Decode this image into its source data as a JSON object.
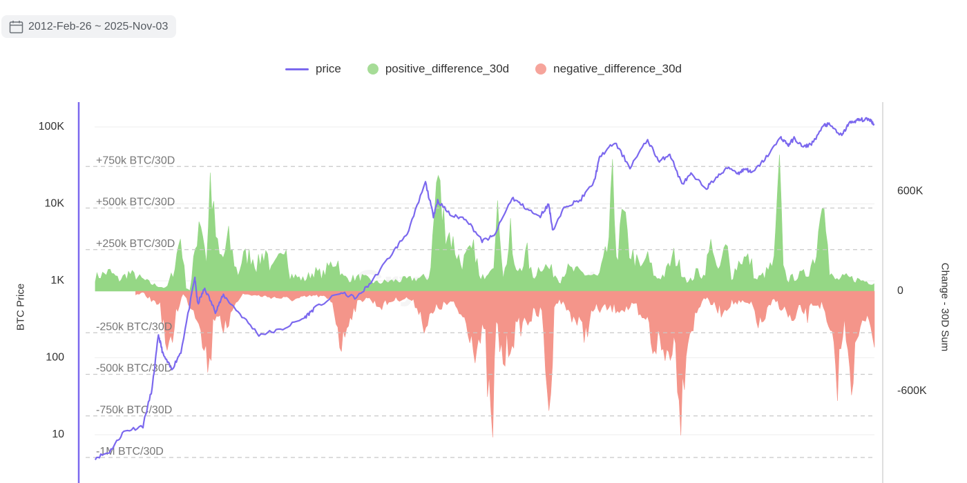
{
  "date_range": {
    "label": "2012-Feb-26 ~ 2025-Nov-03",
    "icon": "calendar-icon"
  },
  "legend": [
    {
      "key": "price",
      "label": "price",
      "color": "#7b68ee",
      "shape": "line"
    },
    {
      "key": "pos",
      "label": "positive_difference_30d",
      "color": "#95d785",
      "shape": "dot"
    },
    {
      "key": "neg",
      "label": "negative_difference_30d",
      "color": "#f4958a",
      "shape": "dot"
    }
  ],
  "axes": {
    "left_title": "BTC Price",
    "right_title": "Change - 30D Sum",
    "left_ticks": [
      "100K",
      "10K",
      "1K",
      "100",
      "10"
    ],
    "right_ticks": [
      "600K",
      "0",
      "-600K"
    ]
  },
  "colors": {
    "price_line": "#7b68ee",
    "positive_fill": "#95d785",
    "negative_fill": "#f4958a",
    "reference_line": "#c8c8c8",
    "grid": "#eeeeee"
  },
  "chart_data": {
    "type": "area",
    "x_range": [
      "2012-02-26",
      "2025-11-03"
    ],
    "y_left": {
      "label": "BTC Price",
      "scale": "log",
      "range": [
        5,
        150000
      ],
      "ticks": [
        10,
        100,
        1000,
        10000,
        100000
      ]
    },
    "y_right": {
      "label": "Change - 30D Sum",
      "range": [
        -1120000,
        1120000
      ],
      "ticks": [
        -600000,
        0,
        600000
      ]
    },
    "reference_lines": [
      {
        "value": 750000,
        "label": "+750k BTC/30D"
      },
      {
        "value": 500000,
        "label": "+500k BTC/30D"
      },
      {
        "value": 250000,
        "label": "+250k BTC/30D"
      },
      {
        "value": -250000,
        "label": "-250k BTC/30D"
      },
      {
        "value": -500000,
        "label": "-500k BTC/30D"
      },
      {
        "value": -750000,
        "label": "-750k BTC/30D"
      },
      {
        "value": -1000000,
        "label": "-1M BTC/30D"
      }
    ],
    "series": [
      {
        "name": "price",
        "points": [
          [
            "2012-03-01",
            5
          ],
          [
            "2012-06-01",
            6
          ],
          [
            "2012-09-01",
            11
          ],
          [
            "2013-01-01",
            13
          ],
          [
            "2013-03-01",
            40
          ],
          [
            "2013-04-10",
            200
          ],
          [
            "2013-05-10",
            110
          ],
          [
            "2013-07-05",
            70
          ],
          [
            "2013-09-01",
            120
          ],
          [
            "2013-11-30",
            1100
          ],
          [
            "2013-12-18",
            500
          ],
          [
            "2014-02-01",
            800
          ],
          [
            "2014-04-10",
            400
          ],
          [
            "2014-06-01",
            650
          ],
          [
            "2014-09-01",
            400
          ],
          [
            "2015-01-14",
            200
          ],
          [
            "2015-06-01",
            230
          ],
          [
            "2015-11-01",
            330
          ],
          [
            "2016-01-01",
            430
          ],
          [
            "2016-06-15",
            700
          ],
          [
            "2016-10-01",
            600
          ],
          [
            "2017-01-01",
            950
          ],
          [
            "2017-06-01",
            2500
          ],
          [
            "2017-09-01",
            4500
          ],
          [
            "2017-12-17",
            19000
          ],
          [
            "2018-02-06",
            7000
          ],
          [
            "2018-03-05",
            11000
          ],
          [
            "2018-06-01",
            7000
          ],
          [
            "2018-09-01",
            6500
          ],
          [
            "2018-12-15",
            3300
          ],
          [
            "2019-03-01",
            3800
          ],
          [
            "2019-06-26",
            12000
          ],
          [
            "2019-09-01",
            9500
          ],
          [
            "2019-12-17",
            6700
          ],
          [
            "2020-02-15",
            10000
          ],
          [
            "2020-03-13",
            4500
          ],
          [
            "2020-06-01",
            9500
          ],
          [
            "2020-09-01",
            11000
          ],
          [
            "2020-12-01",
            19000
          ],
          [
            "2021-01-08",
            41000
          ],
          [
            "2021-04-14",
            63000
          ],
          [
            "2021-07-20",
            30000
          ],
          [
            "2021-11-10",
            68000
          ],
          [
            "2022-01-24",
            35000
          ],
          [
            "2022-04-01",
            45000
          ],
          [
            "2022-06-18",
            18000
          ],
          [
            "2022-08-15",
            24000
          ],
          [
            "2022-11-21",
            16000
          ],
          [
            "2023-01-15",
            21000
          ],
          [
            "2023-04-14",
            30000
          ],
          [
            "2023-06-15",
            25000
          ],
          [
            "2023-08-01",
            29000
          ],
          [
            "2023-09-11",
            25000
          ],
          [
            "2023-12-01",
            38000
          ],
          [
            "2024-03-14",
            73000
          ],
          [
            "2024-05-01",
            58000
          ],
          [
            "2024-06-06",
            71000
          ],
          [
            "2024-08-05",
            54000
          ],
          [
            "2024-10-01",
            62000
          ],
          [
            "2024-12-17",
            106000
          ],
          [
            "2025-01-20",
            107000
          ],
          [
            "2025-04-08",
            76000
          ],
          [
            "2025-05-22",
            111000
          ],
          [
            "2025-07-14",
            122000
          ],
          [
            "2025-08-14",
            124000
          ],
          [
            "2025-10-06",
            125000
          ],
          [
            "2025-11-03",
            107000
          ]
        ]
      },
      {
        "name": "positive_difference_30d",
        "points": [
          [
            "2012-03-01",
            100000
          ],
          [
            "2012-06-01",
            140000
          ],
          [
            "2012-08-01",
            80000
          ],
          [
            "2012-10-01",
            130000
          ],
          [
            "2012-12-01",
            100000
          ],
          [
            "2013-03-01",
            50000
          ],
          [
            "2013-06-01",
            20000
          ],
          [
            "2013-07-20",
            160000
          ],
          [
            "2013-09-01",
            420000
          ],
          [
            "2013-10-01",
            30000
          ],
          [
            "2013-11-01",
            0
          ],
          [
            "2014-01-01",
            600000
          ],
          [
            "2014-02-15",
            200000
          ],
          [
            "2014-03-10",
            860000
          ],
          [
            "2014-04-01",
            500000
          ],
          [
            "2014-05-01",
            250000
          ],
          [
            "2014-06-01",
            240000
          ],
          [
            "2014-07-01",
            380000
          ],
          [
            "2014-09-01",
            120000
          ],
          [
            "2014-10-01",
            240000
          ],
          [
            "2014-12-01",
            260000
          ],
          [
            "2015-01-01",
            180000
          ],
          [
            "2015-03-01",
            310000
          ],
          [
            "2015-04-01",
            140000
          ],
          [
            "2015-06-01",
            230000
          ],
          [
            "2015-07-01",
            430000
          ],
          [
            "2015-08-01",
            120000
          ],
          [
            "2015-11-01",
            80000
          ],
          [
            "2016-01-01",
            140000
          ],
          [
            "2016-03-01",
            120000
          ],
          [
            "2016-05-01",
            210000
          ],
          [
            "2016-06-01",
            230000
          ],
          [
            "2016-07-01",
            100000
          ],
          [
            "2016-09-01",
            90000
          ],
          [
            "2016-11-01",
            100000
          ],
          [
            "2017-02-01",
            60000
          ],
          [
            "2018-01-10",
            100000
          ],
          [
            "2018-02-01",
            370000
          ],
          [
            "2018-03-05",
            890000
          ],
          [
            "2018-04-01",
            550000
          ],
          [
            "2018-06-01",
            380000
          ],
          [
            "2018-08-01",
            200000
          ],
          [
            "2018-11-01",
            300000
          ],
          [
            "2018-12-01",
            60000
          ],
          [
            "2019-01-15",
            150000
          ],
          [
            "2019-03-01",
            250000
          ],
          [
            "2019-04-01",
            600000
          ],
          [
            "2019-05-01",
            80000
          ],
          [
            "2019-06-15",
            400000
          ],
          [
            "2019-07-15",
            120000
          ],
          [
            "2019-10-01",
            270000
          ],
          [
            "2019-11-01",
            90000
          ],
          [
            "2020-01-01",
            200000
          ],
          [
            "2020-03-01",
            150000
          ],
          [
            "2020-05-01",
            80000
          ],
          [
            "2020-06-01",
            160000
          ],
          [
            "2021-01-01",
            100000
          ],
          [
            "2021-03-01",
            310000
          ],
          [
            "2021-04-01",
            760000
          ],
          [
            "2021-05-01",
            200000
          ],
          [
            "2021-06-01",
            560000
          ],
          [
            "2021-07-15",
            300000
          ],
          [
            "2021-09-01",
            210000
          ],
          [
            "2021-10-01",
            150000
          ],
          [
            "2021-11-01",
            260000
          ],
          [
            "2022-01-01",
            90000
          ],
          [
            "2022-03-01",
            120000
          ],
          [
            "2022-05-01",
            260000
          ],
          [
            "2022-06-01",
            180000
          ],
          [
            "2022-08-01",
            60000
          ],
          [
            "2022-10-01",
            150000
          ],
          [
            "2022-11-01",
            100000
          ],
          [
            "2023-01-01",
            380000
          ],
          [
            "2023-02-01",
            100000
          ],
          [
            "2023-03-01",
            230000
          ],
          [
            "2023-04-01",
            320000
          ],
          [
            "2023-05-01",
            100000
          ],
          [
            "2023-07-01",
            240000
          ],
          [
            "2023-09-01",
            220000
          ],
          [
            "2023-10-01",
            80000
          ],
          [
            "2023-12-01",
            120000
          ],
          [
            "2024-02-01",
            210000
          ],
          [
            "2024-03-01",
            850000
          ],
          [
            "2024-04-01",
            150000
          ],
          [
            "2024-05-01",
            80000
          ],
          [
            "2024-06-01",
            100000
          ],
          [
            "2024-09-01",
            130000
          ],
          [
            "2024-11-01",
            300000
          ],
          [
            "2024-12-10",
            980000
          ],
          [
            "2025-01-15",
            120000
          ],
          [
            "2025-03-01",
            80000
          ],
          [
            "2025-05-01",
            100000
          ],
          [
            "2025-06-15",
            90000
          ],
          [
            "2025-11-01",
            60000
          ]
        ]
      },
      {
        "name": "negative_difference_30d",
        "points": [
          [
            "2012-11-15",
            -30000
          ],
          [
            "2013-01-01",
            -10000
          ],
          [
            "2013-03-01",
            -70000
          ],
          [
            "2013-04-15",
            -80000
          ],
          [
            "2013-05-15",
            -250000
          ],
          [
            "2013-06-15",
            -550000
          ],
          [
            "2013-07-01",
            -380000
          ],
          [
            "2013-08-01",
            -150000
          ],
          [
            "2013-09-15",
            -20000
          ],
          [
            "2014-01-01",
            -210000
          ],
          [
            "2014-02-01",
            -410000
          ],
          [
            "2014-03-01",
            -570000
          ],
          [
            "2014-04-01",
            -180000
          ],
          [
            "2014-05-01",
            -150000
          ],
          [
            "2014-07-01",
            -350000
          ],
          [
            "2014-08-01",
            -100000
          ],
          [
            "2014-10-01",
            -20000
          ],
          [
            "2015-09-01",
            -60000
          ],
          [
            "2016-01-01",
            -30000
          ],
          [
            "2016-03-01",
            -40000
          ],
          [
            "2016-05-01",
            -80000
          ],
          [
            "2016-07-01",
            -420000
          ],
          [
            "2016-08-01",
            -220000
          ],
          [
            "2016-10-01",
            -100000
          ],
          [
            "2016-12-01",
            -40000
          ],
          [
            "2017-03-01",
            -110000
          ],
          [
            "2017-06-01",
            -60000
          ],
          [
            "2017-09-01",
            -50000
          ],
          [
            "2017-11-01",
            -120000
          ],
          [
            "2017-12-15",
            -260000
          ],
          [
            "2018-01-15",
            -200000
          ],
          [
            "2018-03-01",
            -120000
          ],
          [
            "2018-06-01",
            -80000
          ],
          [
            "2018-09-01",
            -210000
          ],
          [
            "2018-11-01",
            -400000
          ],
          [
            "2019-01-01",
            -310000
          ],
          [
            "2019-02-15",
            -1150000
          ],
          [
            "2019-03-15",
            -260000
          ],
          [
            "2019-05-01",
            -500000
          ],
          [
            "2019-06-15",
            -350000
          ],
          [
            "2019-08-01",
            -280000
          ],
          [
            "2019-09-01",
            -230000
          ],
          [
            "2019-11-01",
            -180000
          ],
          [
            "2020-01-01",
            -150000
          ],
          [
            "2020-03-01",
            -1000000
          ],
          [
            "2020-03-15",
            -90000
          ],
          [
            "2020-05-01",
            -70000
          ],
          [
            "2020-08-01",
            -200000
          ],
          [
            "2020-10-01",
            -310000
          ],
          [
            "2020-12-01",
            -130000
          ],
          [
            "2021-09-01",
            -120000
          ],
          [
            "2021-10-01",
            -250000
          ],
          [
            "2021-11-01",
            -180000
          ],
          [
            "2021-12-15",
            -400000
          ],
          [
            "2022-01-15",
            -350000
          ],
          [
            "2022-03-01",
            -480000
          ],
          [
            "2022-05-01",
            -340000
          ],
          [
            "2022-06-15",
            -860000
          ],
          [
            "2022-07-15",
            -370000
          ],
          [
            "2022-09-01",
            -220000
          ],
          [
            "2022-11-01",
            -40000
          ],
          [
            "2023-03-01",
            -150000
          ],
          [
            "2023-05-01",
            -80000
          ],
          [
            "2023-08-01",
            -90000
          ],
          [
            "2023-09-15",
            -110000
          ],
          [
            "2023-11-01",
            -260000
          ],
          [
            "2024-01-01",
            -120000
          ],
          [
            "2024-02-01",
            -60000
          ],
          [
            "2024-05-01",
            -170000
          ],
          [
            "2024-06-01",
            -250000
          ],
          [
            "2024-07-15",
            -120000
          ],
          [
            "2024-09-01",
            -180000
          ],
          [
            "2024-10-01",
            -90000
          ],
          [
            "2024-12-01",
            -100000
          ],
          [
            "2025-01-15",
            -300000
          ],
          [
            "2025-02-15",
            -480000
          ],
          [
            "2025-03-15",
            -630000
          ],
          [
            "2025-04-10",
            -320000
          ],
          [
            "2025-05-01",
            -240000
          ],
          [
            "2025-06-15",
            -640000
          ],
          [
            "2025-07-15",
            -360000
          ],
          [
            "2025-08-15",
            -280000
          ],
          [
            "2025-09-15",
            -150000
          ],
          [
            "2025-10-15",
            -230000
          ],
          [
            "2025-10-25",
            -290000
          ],
          [
            "2025-11-03",
            -400000
          ]
        ]
      }
    ],
    "watermark": "CryptoQuant"
  }
}
